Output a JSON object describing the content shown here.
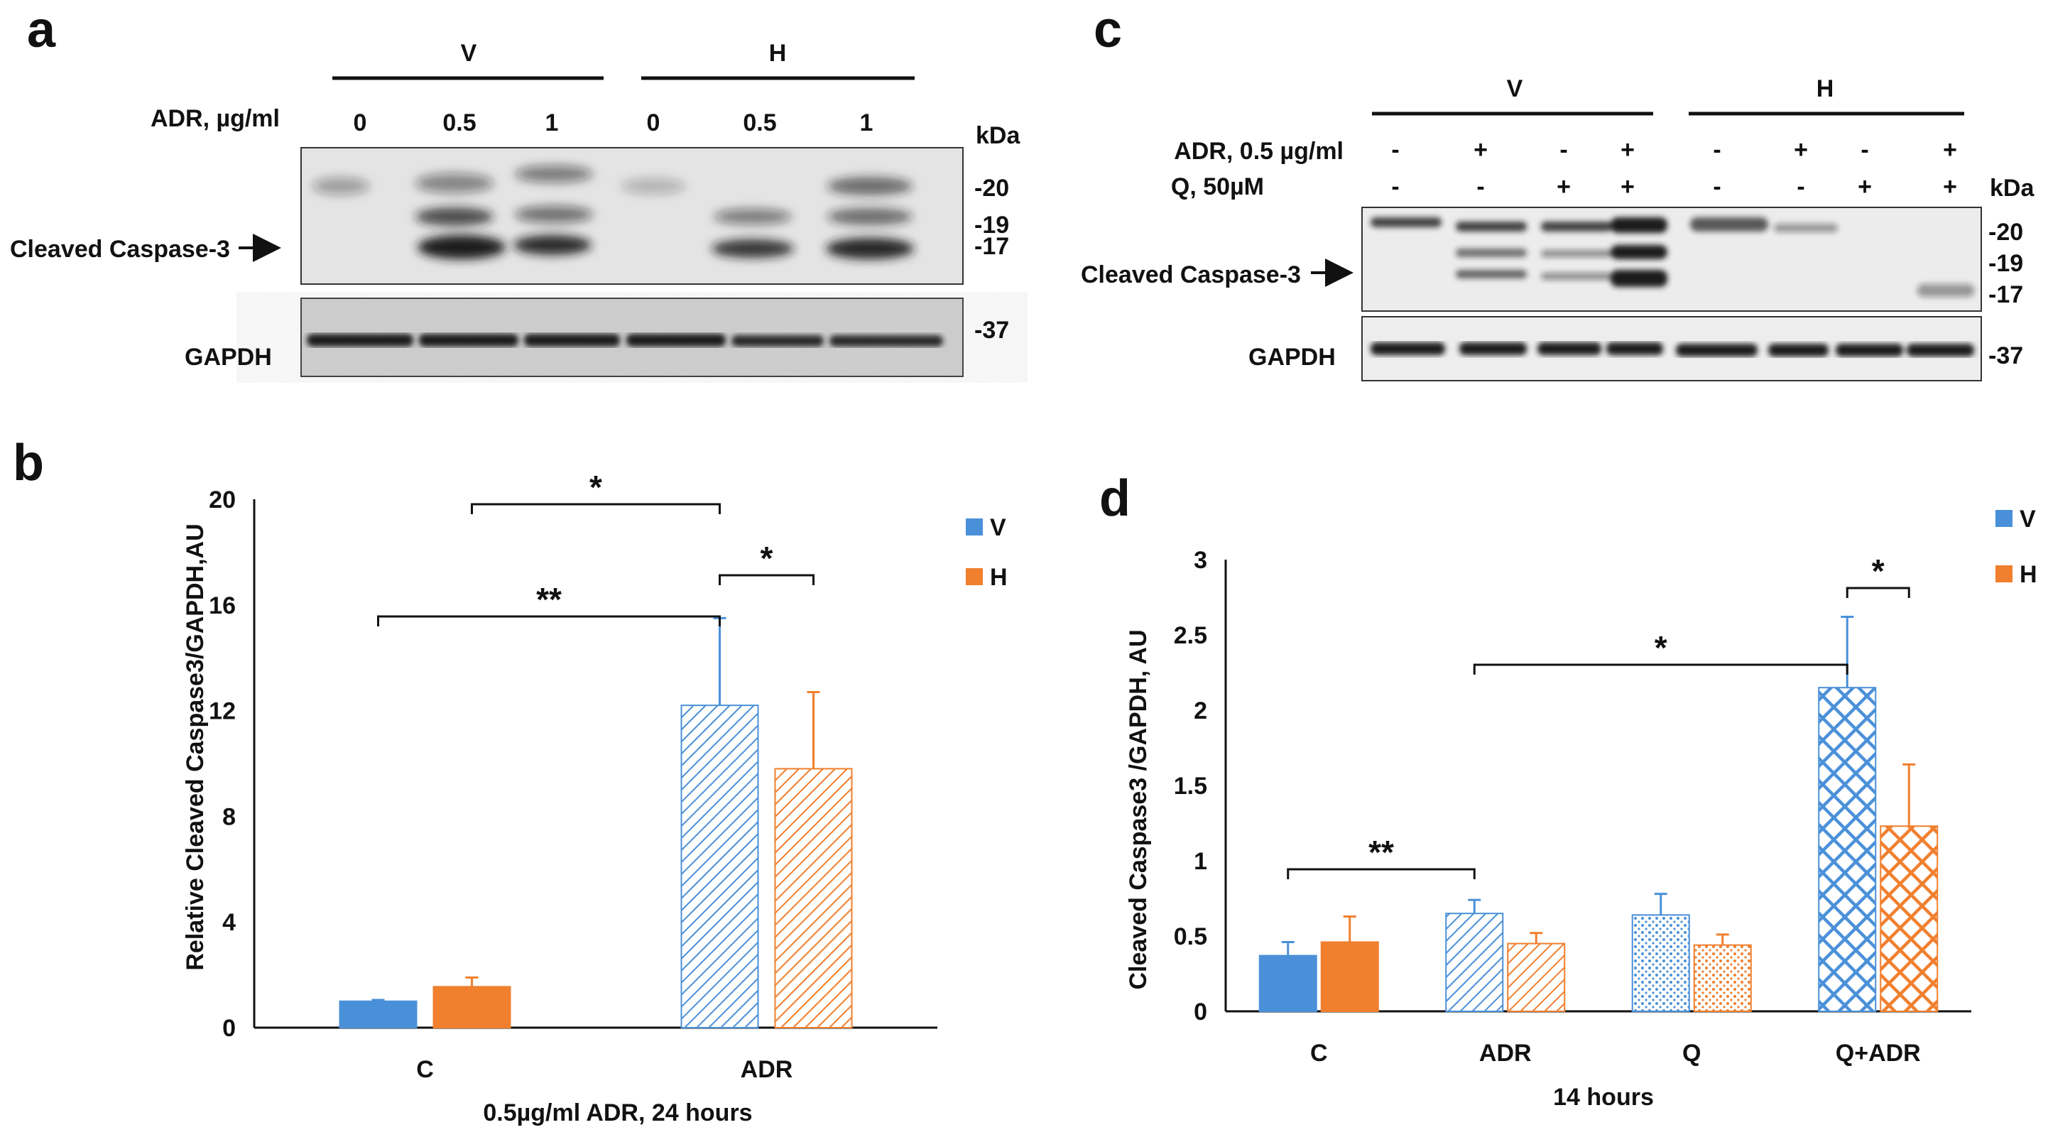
{
  "panels": {
    "a": {
      "letter": "a",
      "groups": [
        "V",
        "H"
      ],
      "adr_label": "ADR, µg/ml",
      "doses": [
        "0",
        "0.5",
        "1",
        "0",
        "0.5",
        "1"
      ],
      "kda_label": "kDa",
      "target_label": "Cleaved Caspase-3",
      "loading_label": "GAPDH",
      "markers_target": [
        "-20",
        "-19",
        "-17"
      ],
      "markers_loading": [
        "-37"
      ]
    },
    "c": {
      "letter": "c",
      "groups": [
        "V",
        "H"
      ],
      "row1_label": "ADR, 0.5 µg/ml",
      "row1_signs": [
        "-",
        "+",
        "-",
        "+",
        "-",
        "+",
        "-",
        "+"
      ],
      "row2_label": "Q, 50µM",
      "row2_signs": [
        "-",
        "-",
        "+",
        "+",
        "-",
        "-",
        "+",
        "+"
      ],
      "kda_label": "kDa",
      "target_label": "Cleaved Caspase-3",
      "loading_label": "GAPDH",
      "markers_target": [
        "-20",
        "-19",
        "-17"
      ],
      "markers_loading": [
        "-37"
      ]
    },
    "b": {
      "letter": "b"
    },
    "d": {
      "letter": "d"
    }
  },
  "chart_data": [
    {
      "panel": "b",
      "type": "bar",
      "categories": [
        "C",
        "ADR"
      ],
      "series": [
        {
          "name": "V",
          "values": [
            1.0,
            12.2
          ],
          "errors": [
            0.05,
            3.3
          ],
          "color": "#4a90d9"
        },
        {
          "name": "H",
          "values": [
            1.55,
            9.8
          ],
          "errors": [
            0.35,
            2.9
          ],
          "color": "#f07f2e"
        }
      ],
      "ylabel": "Relative Cleaved Caspase3/GAPDH,AU",
      "xlabel": "0.5µg/ml ADR, 24 hours",
      "ylim": [
        0,
        20
      ],
      "yticks": [
        "0",
        "4",
        "8",
        "12",
        "16",
        "20"
      ],
      "legend_position": "top-right",
      "significance": [
        "*",
        "**",
        "*"
      ]
    },
    {
      "panel": "d",
      "type": "bar",
      "categories": [
        "C",
        "ADR",
        "Q",
        "Q+ADR"
      ],
      "series": [
        {
          "name": "V",
          "values": [
            0.37,
            0.65,
            0.64,
            2.15
          ],
          "errors": [
            0.09,
            0.09,
            0.14,
            0.47
          ],
          "color": "#4a90d9"
        },
        {
          "name": "H",
          "values": [
            0.46,
            0.45,
            0.44,
            1.23
          ],
          "errors": [
            0.17,
            0.07,
            0.07,
            0.41
          ],
          "color": "#f07f2e"
        }
      ],
      "ylabel": "Cleaved Caspase3 /GAPDH, AU",
      "xlabel": "14 hours",
      "ylim": [
        0,
        3
      ],
      "yticks": [
        "0",
        "0.5",
        "1",
        "1.5",
        "2",
        "2.5",
        "3"
      ],
      "legend_position": "top-right",
      "significance": [
        "**",
        "*",
        "*"
      ]
    }
  ]
}
